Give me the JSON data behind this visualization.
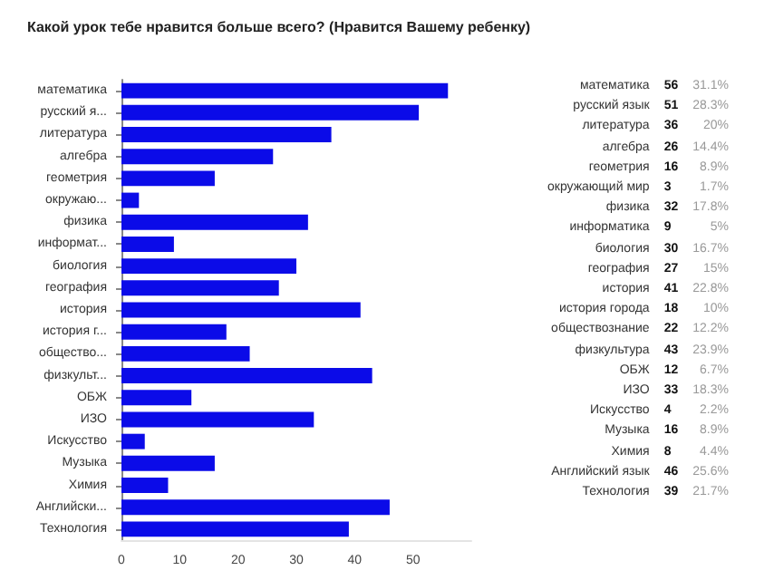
{
  "chart_data": [
    {
      "type": "bar",
      "orientation": "horizontal",
      "title": "Какой урок тебе нравится больше всего? (Нравится Вашему ребенку)",
      "categories": [
        "математика",
        "русский я...",
        "литература",
        "алгебра",
        "геометрия",
        "окружаю...",
        "физика",
        "информат...",
        "биология",
        "география",
        "история",
        "история г...",
        "общество...",
        "физкульт...",
        "ОБЖ",
        "ИЗО",
        "Искусство",
        "Музыка",
        "Химия",
        "Английски...",
        "Технология"
      ],
      "values": [
        56,
        51,
        36,
        26,
        16,
        3,
        32,
        9,
        30,
        27,
        41,
        18,
        22,
        43,
        12,
        33,
        4,
        16,
        8,
        46,
        39
      ],
      "color": "#0b0be8",
      "xlim": [
        0,
        60
      ],
      "xticks": [
        0,
        10,
        20,
        30,
        40,
        50
      ]
    },
    {
      "type": "other",
      "categories": [
        "математика",
        "русский язык",
        "литература",
        "алгебра",
        "геометрия",
        "окружающий мир",
        "физика",
        "информатика",
        "биология",
        "география",
        "история",
        "история города",
        "обществознание",
        "физкультура",
        "ОБЖ",
        "ИЗО",
        "Искусство",
        "Музыка",
        "Химия",
        "Английский язык",
        "Технология"
      ],
      "values": [
        56,
        51,
        36,
        26,
        16,
        3,
        32,
        9,
        30,
        27,
        41,
        18,
        22,
        43,
        12,
        33,
        4,
        16,
        8,
        46,
        39
      ],
      "data_labels": true,
      "annotations": [
        "31.1%",
        "28.3%",
        "20%",
        "14.4%",
        "8.9%",
        "1.7%",
        "17.8%",
        "5%",
        "16.7%",
        "15%",
        "22.8%",
        "10%",
        "12.2%",
        "23.9%",
        "6.7%",
        "18.3%",
        "2.2%",
        "8.9%",
        "4.4%",
        "25.6%",
        "21.7%"
      ]
    }
  ]
}
